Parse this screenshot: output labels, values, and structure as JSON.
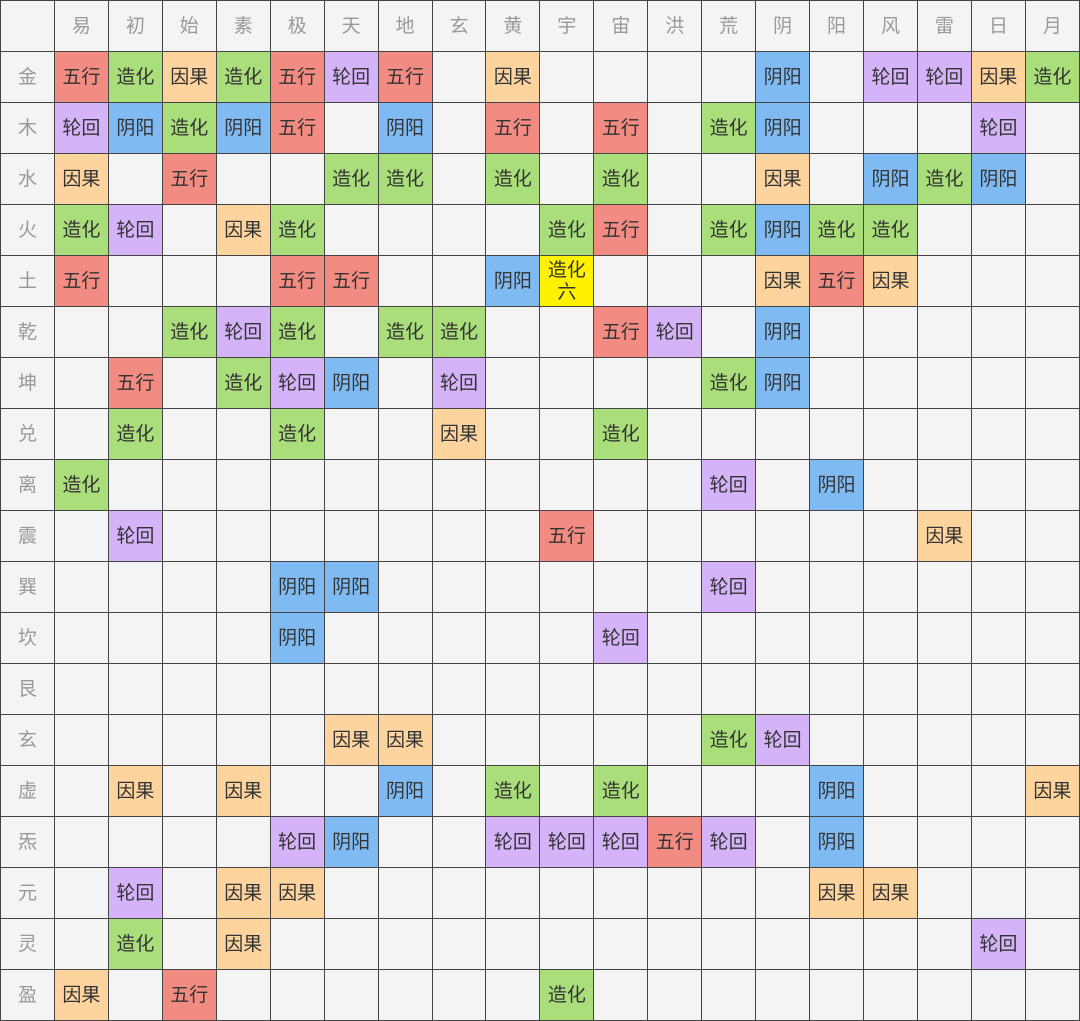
{
  "colors": {
    "五行": "#f28b82",
    "造化": "#a9de7b",
    "因果": "#fdd49e",
    "轮回": "#d4b3f8",
    "阴阳": "#7fbbf2",
    "highlight": "#fff200"
  },
  "col_headers": [
    "易",
    "初",
    "始",
    "素",
    "极",
    "天",
    "地",
    "玄",
    "黄",
    "宇",
    "宙",
    "洪",
    "荒",
    "阴",
    "阳",
    "风",
    "雷",
    "日",
    "月"
  ],
  "rows": [
    {
      "label": "金",
      "cells": [
        "五行",
        "造化",
        "因果",
        "造化",
        "五行",
        "轮回",
        "五行",
        "",
        "因果",
        "",
        "",
        "",
        "",
        "阴阳",
        "",
        "轮回",
        "轮回",
        "因果",
        "造化"
      ]
    },
    {
      "label": "木",
      "cells": [
        "轮回",
        "阴阳",
        "造化",
        "阴阳",
        "五行",
        "",
        "阴阳",
        "",
        "五行",
        "",
        "五行",
        "",
        "造化",
        "阴阳",
        "",
        "",
        "",
        "轮回",
        ""
      ]
    },
    {
      "label": "水",
      "cells": [
        "因果",
        "",
        "五行",
        "",
        "",
        "造化",
        "造化",
        "",
        "造化",
        "",
        "造化",
        "",
        "",
        "因果",
        "",
        "阴阳",
        "造化",
        "阴阳",
        ""
      ]
    },
    {
      "label": "火",
      "cells": [
        "造化",
        "轮回",
        "",
        "因果",
        "造化",
        "",
        "",
        "",
        "",
        "造化",
        "五行",
        "",
        "造化",
        "阴阳",
        "造化",
        "造化",
        "",
        "",
        ""
      ]
    },
    {
      "label": "土",
      "cells": [
        "五行",
        "",
        "",
        "",
        "五行",
        "五行",
        "",
        "",
        "阴阳",
        "造化 六",
        "",
        "",
        "",
        "因果",
        "五行",
        "因果",
        "",
        "",
        ""
      ]
    },
    {
      "label": "乾",
      "cells": [
        "",
        "",
        "造化",
        "轮回",
        "造化",
        "",
        "造化",
        "造化",
        "",
        "",
        "五行",
        "轮回",
        "",
        "阴阳",
        "",
        "",
        "",
        "",
        ""
      ]
    },
    {
      "label": "坤",
      "cells": [
        "",
        "五行",
        "",
        "造化",
        "轮回",
        "阴阳",
        "",
        "轮回",
        "",
        "",
        "",
        "",
        "造化",
        "阴阳",
        "",
        "",
        "",
        "",
        ""
      ]
    },
    {
      "label": "兑",
      "cells": [
        "",
        "造化",
        "",
        "",
        "造化",
        "",
        "",
        "因果",
        "",
        "",
        "造化",
        "",
        "",
        "",
        "",
        "",
        "",
        "",
        ""
      ]
    },
    {
      "label": "离",
      "cells": [
        "造化",
        "",
        "",
        "",
        "",
        "",
        "",
        "",
        "",
        "",
        "",
        "",
        "轮回",
        "",
        "阴阳",
        "",
        "",
        "",
        ""
      ]
    },
    {
      "label": "震",
      "cells": [
        "",
        "轮回",
        "",
        "",
        "",
        "",
        "",
        "",
        "",
        "五行",
        "",
        "",
        "",
        "",
        "",
        "",
        "因果",
        "",
        ""
      ]
    },
    {
      "label": "巽",
      "cells": [
        "",
        "",
        "",
        "",
        "阴阳",
        "阴阳",
        "",
        "",
        "",
        "",
        "",
        "",
        "轮回",
        "",
        "",
        "",
        "",
        "",
        ""
      ]
    },
    {
      "label": "坎",
      "cells": [
        "",
        "",
        "",
        "",
        "阴阳",
        "",
        "",
        "",
        "",
        "",
        "轮回",
        "",
        "",
        "",
        "",
        "",
        "",
        "",
        ""
      ]
    },
    {
      "label": "艮",
      "cells": [
        "",
        "",
        "",
        "",
        "",
        "",
        "",
        "",
        "",
        "",
        "",
        "",
        "",
        "",
        "",
        "",
        "",
        "",
        ""
      ]
    },
    {
      "label": "玄",
      "cells": [
        "",
        "",
        "",
        "",
        "",
        "因果",
        "因果",
        "",
        "",
        "",
        "",
        "",
        "造化",
        "轮回",
        "",
        "",
        "",
        "",
        ""
      ]
    },
    {
      "label": "虚",
      "cells": [
        "",
        "因果",
        "",
        "因果",
        "",
        "",
        "阴阳",
        "",
        "造化",
        "",
        "造化",
        "",
        "",
        "",
        "阴阳",
        "",
        "",
        "",
        "因果"
      ]
    },
    {
      "label": "炁",
      "cells": [
        "",
        "",
        "",
        "",
        "轮回",
        "阴阳",
        "",
        "",
        "轮回",
        "轮回",
        "轮回",
        "五行",
        "轮回",
        "",
        "阴阳",
        "",
        "",
        "",
        ""
      ]
    },
    {
      "label": "元",
      "cells": [
        "",
        "轮回",
        "",
        "因果",
        "因果",
        "",
        "",
        "",
        "",
        "",
        "",
        "",
        "",
        "",
        "因果",
        "因果",
        "",
        "",
        ""
      ]
    },
    {
      "label": "灵",
      "cells": [
        "",
        "造化",
        "",
        "因果",
        "",
        "",
        "",
        "",
        "",
        "",
        "",
        "",
        "",
        "",
        "",
        "",
        "",
        "轮回",
        ""
      ]
    },
    {
      "label": "盈",
      "cells": [
        "因果",
        "",
        "五行",
        "",
        "",
        "",
        "",
        "",
        "",
        "造化",
        "",
        "",
        "",
        "",
        "",
        "",
        "",
        "",
        ""
      ]
    }
  ]
}
